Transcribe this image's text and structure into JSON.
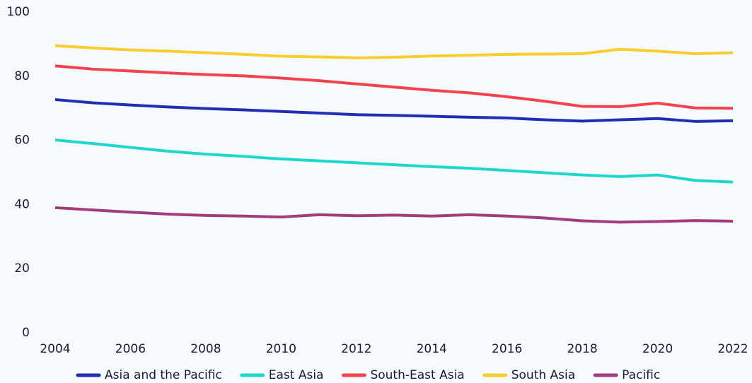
{
  "chart_data": {
    "type": "line",
    "x": [
      2004,
      2005,
      2006,
      2007,
      2008,
      2009,
      2010,
      2011,
      2012,
      2013,
      2014,
      2015,
      2016,
      2017,
      2018,
      2019,
      2020,
      2021,
      2022
    ],
    "series": [
      {
        "name": "Asia and the Pacific",
        "color": "#1f2fb8",
        "values": [
          72.7,
          71.7,
          71,
          70.4,
          69.9,
          69.5,
          69,
          68.5,
          68,
          67.8,
          67.5,
          67.2,
          67,
          66.4,
          66,
          66.4,
          66.8,
          65.9,
          66.1
        ]
      },
      {
        "name": "East Asia",
        "color": "#1fd6cf",
        "values": [
          60.1,
          59,
          57.8,
          56.6,
          55.7,
          55,
          54.2,
          53.6,
          53,
          52.4,
          51.8,
          51.3,
          50.6,
          49.9,
          49.2,
          48.7,
          49.2,
          47.5,
          47
        ]
      },
      {
        "name": "South-East Asia",
        "color": "#f5424f",
        "values": [
          83.2,
          82.2,
          81.6,
          81,
          80.5,
          80.1,
          79.4,
          78.6,
          77.6,
          76.6,
          75.6,
          74.8,
          73.6,
          72.2,
          70.6,
          70.5,
          71.6,
          70.1,
          70
        ]
      },
      {
        "name": "South Asia",
        "color": "#f9cd2d",
        "values": [
          89.5,
          88.8,
          88.2,
          87.8,
          87.3,
          86.8,
          86.2,
          86,
          85.7,
          85.9,
          86.3,
          86.5,
          86.8,
          86.9,
          87,
          88.4,
          87.8,
          87,
          87.3
        ]
      },
      {
        "name": "Pacific",
        "color": "#a33b7f",
        "values": [
          39,
          38.3,
          37.6,
          37,
          36.6,
          36.4,
          36.1,
          36.8,
          36.5,
          36.7,
          36.4,
          36.8,
          36.4,
          35.8,
          34.9,
          34.5,
          34.7,
          35,
          34.8
        ]
      }
    ],
    "xlim": [
      2004,
      2022
    ],
    "xticks": [
      2004,
      2006,
      2008,
      2010,
      2012,
      2014,
      2016,
      2018,
      2020,
      2022
    ],
    "ylim": [
      0,
      100
    ],
    "yticks": [
      0,
      20,
      40,
      60,
      80,
      100
    ],
    "grid": false,
    "legend": "bottom"
  }
}
